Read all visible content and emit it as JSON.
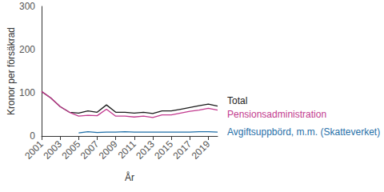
{
  "chart_data": {
    "type": "line",
    "x_label": "År",
    "y_label": "Kronor per försäkrad",
    "x": [
      2001,
      2002,
      2003,
      2004,
      2005,
      2006,
      2007,
      2008,
      2009,
      2010,
      2011,
      2012,
      2013,
      2014,
      2015,
      2016,
      2017,
      2018,
      2019,
      2020
    ],
    "series": [
      {
        "name": "Total",
        "color": "#1a1a1a",
        "values": [
          103,
          88,
          68,
          55,
          53,
          58,
          55,
          72,
          55,
          55,
          53,
          55,
          52,
          58,
          58,
          62,
          66,
          70,
          74,
          69
        ]
      },
      {
        "name": "Pensionsadministration",
        "color": "#c2398e",
        "values": [
          103,
          88,
          68,
          55,
          46,
          48,
          47,
          62,
          46,
          46,
          44,
          46,
          43,
          49,
          49,
          53,
          57,
          60,
          64,
          60
        ]
      },
      {
        "name": "Avgiftsuppbörd, m.m. (Skatteverket)",
        "color": "#1f6fa8",
        "values": [
          null,
          null,
          null,
          null,
          7,
          10,
          8,
          9,
          9,
          10,
          9,
          9,
          9,
          9,
          9,
          9,
          9,
          10,
          10,
          9
        ]
      }
    ],
    "xlim": [
      2001,
      2020
    ],
    "xticks": [
      2001,
      2003,
      2005,
      2007,
      2009,
      2011,
      2013,
      2015,
      2017,
      2019
    ],
    "ylim": [
      0,
      300
    ],
    "yticks": [
      0,
      100,
      200,
      300
    ],
    "grid": false
  }
}
